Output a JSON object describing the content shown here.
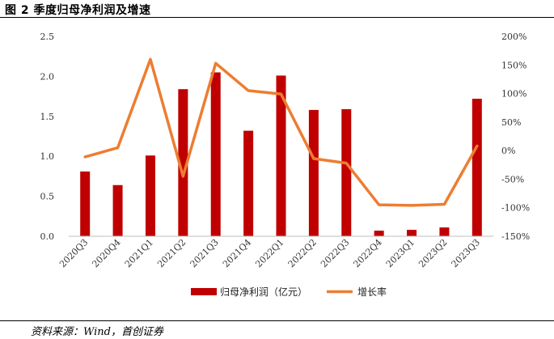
{
  "header": {
    "title": "图 2 季度归母净利润及增速"
  },
  "footer": {
    "source": "资料来源：Wind，首创证券"
  },
  "chart_data": {
    "type": "bar",
    "categories": [
      "2020Q3",
      "2020Q4",
      "2021Q1",
      "2021Q2",
      "2021Q3",
      "2021Q4",
      "2022Q1",
      "2022Q2",
      "2022Q3",
      "2022Q4",
      "2023Q1",
      "2023Q2",
      "2023Q3"
    ],
    "series": [
      {
        "name": "归母净利润（亿元）",
        "type": "bar",
        "axis": "left",
        "color": "#C00000",
        "values": [
          0.81,
          0.64,
          1.01,
          1.84,
          2.05,
          1.32,
          2.01,
          1.58,
          1.59,
          0.07,
          0.08,
          0.11,
          1.72
        ]
      },
      {
        "name": "增长率",
        "type": "line",
        "axis": "right",
        "color": "#ED7D31",
        "values": [
          -11,
          5,
          160,
          -45,
          153,
          105,
          99,
          -14,
          -22,
          -95,
          -96,
          -94,
          8
        ]
      }
    ],
    "left_axis": {
      "ylim": [
        0,
        2.5
      ],
      "ticks": [
        "0.0",
        "0.5",
        "1.0",
        "1.5",
        "2.0",
        "2.5"
      ]
    },
    "right_axis": {
      "ylim": [
        -150,
        200
      ],
      "ticks": [
        "-150%",
        "-100%",
        "-50%",
        "0%",
        "50%",
        "100%",
        "150%",
        "200%"
      ]
    },
    "grid": false,
    "legend_position": "bottom"
  }
}
